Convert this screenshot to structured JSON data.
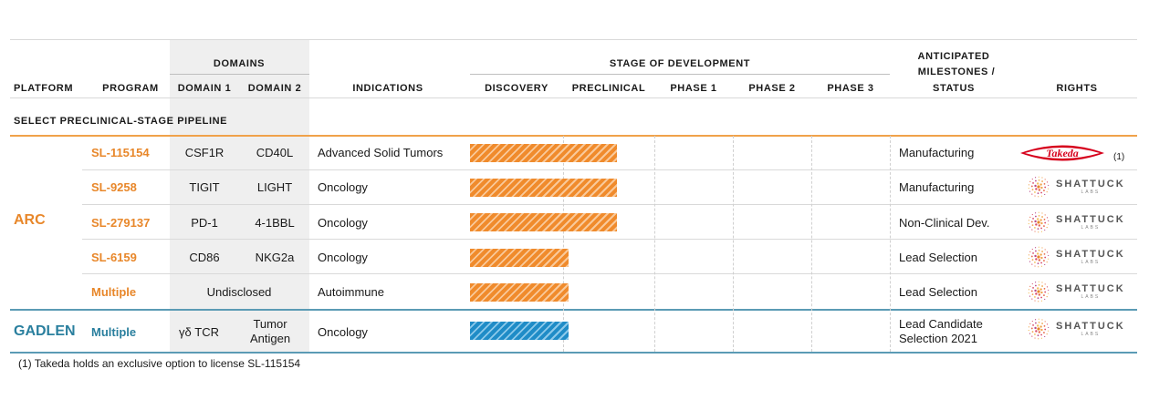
{
  "headers": {
    "platform": "PLATFORM",
    "program": "PROGRAM",
    "domains": "DOMAINS",
    "domain1": "DOMAIN 1",
    "domain2": "DOMAIN 2",
    "indications": "INDICATIONS",
    "stage": "STAGE OF DEVELOPMENT",
    "discovery": "DISCOVERY",
    "preclinical": "PRECLINICAL",
    "phase1": "PHASE 1",
    "phase2": "PHASE 2",
    "phase3": "PHASE 3",
    "milestones_line1": "ANTICIPATED",
    "milestones_line2": "MILESTONES /",
    "milestones_line3": "STATUS",
    "rights": "RIGHTS"
  },
  "section_label": "SELECT PRECLINICAL-STAGE PIPELINE",
  "platforms": {
    "arc": "ARC",
    "gadlen": "GADLEN"
  },
  "rows": [
    {
      "program": "SL-115154",
      "domain1": "CSF1R",
      "domain2": "CD40L",
      "indication": "Advanced Solid Tumors",
      "status": "Manufacturing",
      "rights": "Takeda",
      "progress_pct": 35
    },
    {
      "program": "SL-9258",
      "domain1": "TIGIT",
      "domain2": "LIGHT",
      "indication": "Oncology",
      "status": "Manufacturing",
      "rights": "SHATTUCK",
      "progress_pct": 35
    },
    {
      "program": "SL-279137",
      "domain1": "PD-1",
      "domain2": "4-1BBL",
      "indication": "Oncology",
      "status": "Non-Clinical Dev.",
      "rights": "SHATTUCK",
      "progress_pct": 35
    },
    {
      "program": "SL-6159",
      "domain1": "CD86",
      "domain2": "NKG2a",
      "indication": "Oncology",
      "status": "Lead Selection",
      "rights": "SHATTUCK",
      "progress_pct": 23.5
    },
    {
      "program": "Multiple",
      "domains_merged": "Undisclosed",
      "indication": "Autoimmune",
      "status": "Lead Selection",
      "rights": "SHATTUCK",
      "progress_pct": 23.5
    },
    {
      "program": "Multiple",
      "domain1": "γδ TCR",
      "domain2_line1": "Tumor",
      "domain2_line2": "Antigen",
      "indication": "Oncology",
      "status_line1": "Lead Candidate",
      "status_line2": "Selection 2021",
      "rights": "SHATTUCK",
      "progress_pct": 23.5
    }
  ],
  "logos": {
    "takeda": "Takeda",
    "takeda_note": "(1)",
    "shattuck_word": "SHATTUCK",
    "shattuck_sub": "LABS"
  },
  "colors": {
    "arc_orange": "#e8872a",
    "gadlen_blue": "#2a7f9e",
    "takeda_red": "#d6001c"
  },
  "footnote": "(1)  Takeda holds an exclusive option to license SL-115154"
}
